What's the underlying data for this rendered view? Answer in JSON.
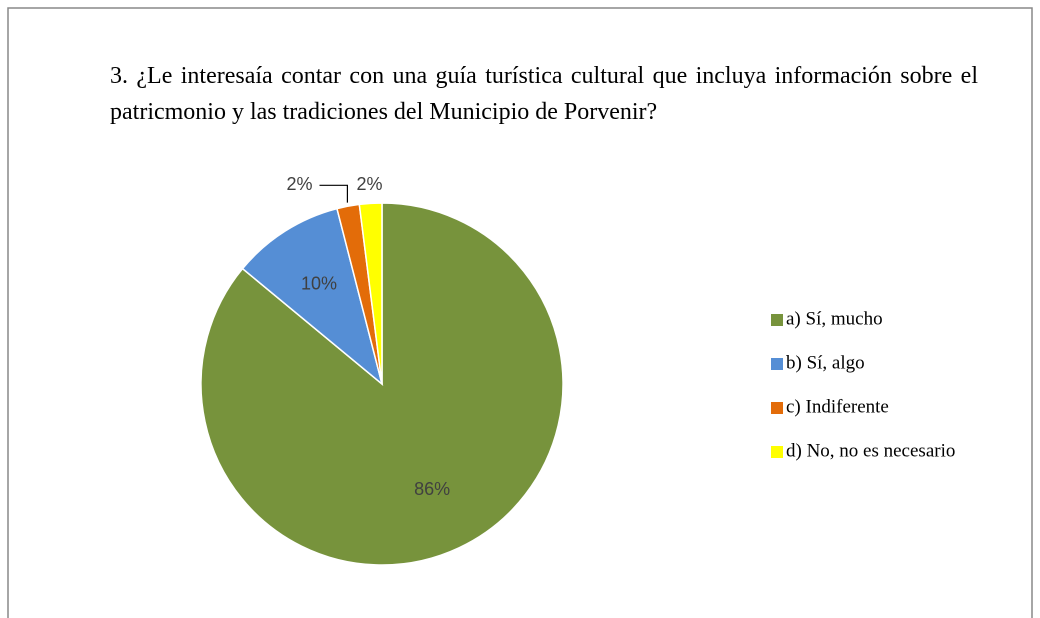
{
  "chart_data": {
    "type": "pie",
    "title": "3. ¿Le interesaía contar con una guía turística cultural que incluya información sobre el patricmonio y las tradiciones del Municipio de Porvenir?",
    "categories": [
      "a) Sí, mucho",
      "b) Sí, algo",
      "c) Indiferente",
      "d) No, no es necesario"
    ],
    "values": [
      86,
      10,
      2,
      2
    ],
    "value_labels": [
      "86%",
      "10%",
      "2%",
      "2%"
    ],
    "colors": [
      "#77933c",
      "#558ed5",
      "#e36c09",
      "#ffff00"
    ],
    "legend": "right"
  }
}
